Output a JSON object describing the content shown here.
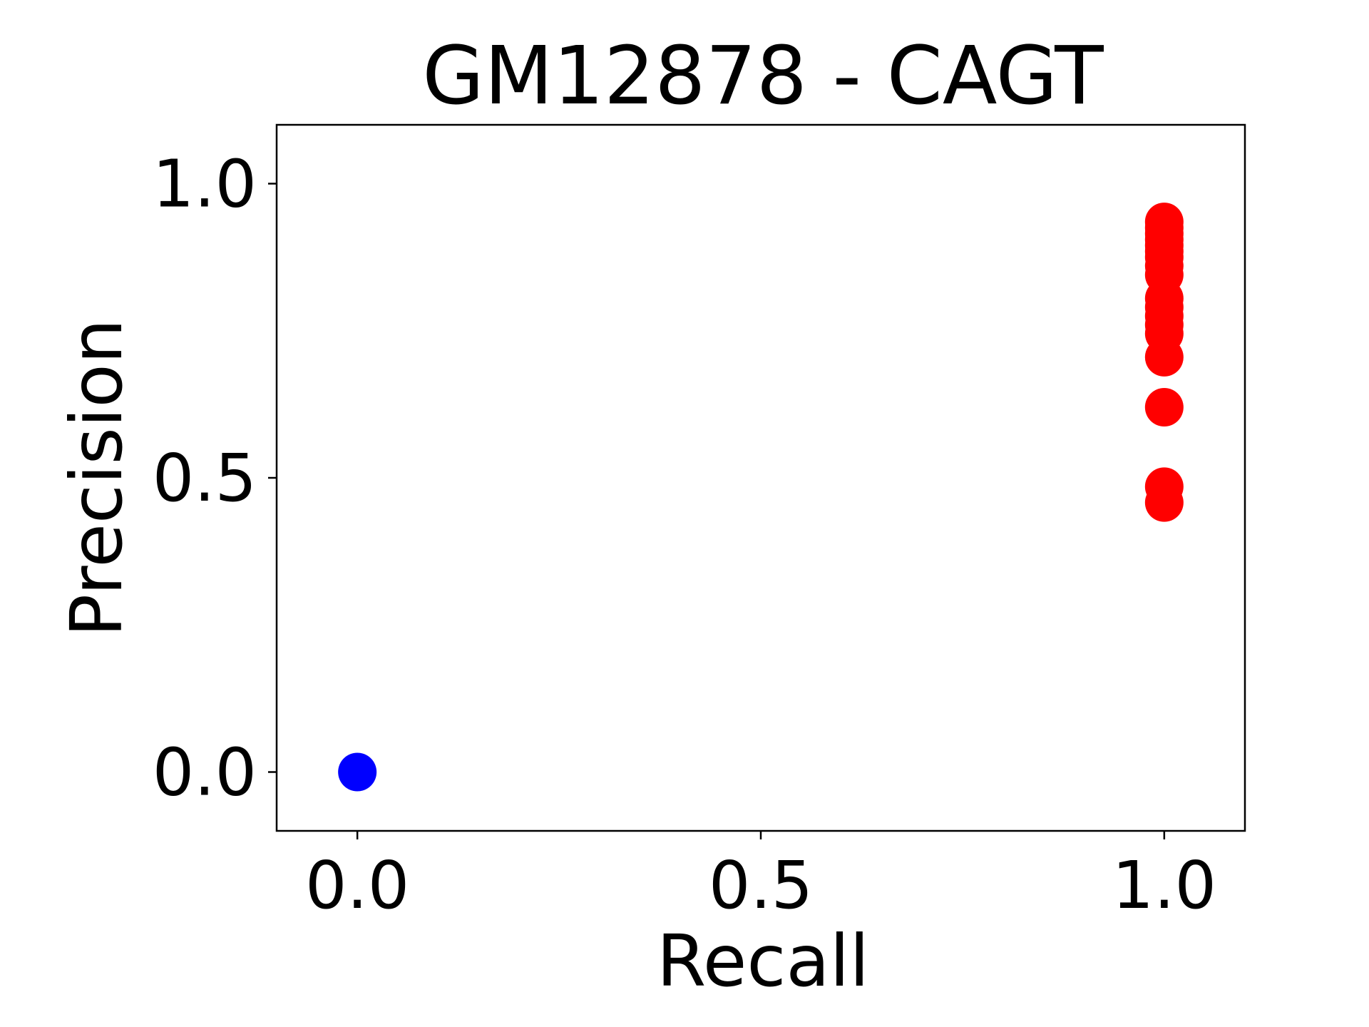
{
  "chart_data": {
    "type": "scatter",
    "title": "GM12878 - CAGT",
    "xlabel": "Recall",
    "ylabel": "Precision",
    "xlim": [
      -0.1,
      1.1
    ],
    "ylim": [
      -0.1,
      1.1
    ],
    "x_ticks": [
      0.0,
      0.5,
      1.0
    ],
    "x_tick_labels": [
      "0.0",
      "0.5",
      "1.0"
    ],
    "y_ticks": [
      0.0,
      0.5,
      1.0
    ],
    "y_tick_labels": [
      "0.0",
      "0.5",
      "1.0"
    ],
    "grid": false,
    "series": [
      {
        "color": "#0000ff",
        "points": [
          {
            "x": 0.0,
            "y": 0.0
          }
        ]
      },
      {
        "color": "#ff0000",
        "points": [
          {
            "x": 1.0,
            "y": 0.935
          },
          {
            "x": 1.0,
            "y": 0.925
          },
          {
            "x": 1.0,
            "y": 0.915
          },
          {
            "x": 1.0,
            "y": 0.905
          },
          {
            "x": 1.0,
            "y": 0.895
          },
          {
            "x": 1.0,
            "y": 0.885
          },
          {
            "x": 1.0,
            "y": 0.875
          },
          {
            "x": 1.0,
            "y": 0.86
          },
          {
            "x": 1.0,
            "y": 0.845
          },
          {
            "x": 1.0,
            "y": 0.805
          },
          {
            "x": 1.0,
            "y": 0.79
          },
          {
            "x": 1.0,
            "y": 0.775
          },
          {
            "x": 1.0,
            "y": 0.76
          },
          {
            "x": 1.0,
            "y": 0.745
          },
          {
            "x": 1.0,
            "y": 0.705
          },
          {
            "x": 1.0,
            "y": 0.62
          },
          {
            "x": 1.0,
            "y": 0.485
          },
          {
            "x": 1.0,
            "y": 0.458
          }
        ]
      }
    ]
  }
}
